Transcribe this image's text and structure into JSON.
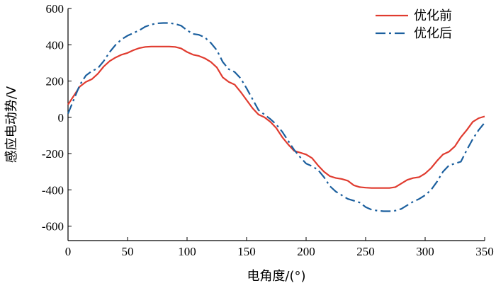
{
  "chart_data": {
    "type": "line",
    "xlabel": "电角度/(°)",
    "ylabel": "感应电动势/V",
    "xlim": [
      0,
      350
    ],
    "ylim": [
      -680,
      600
    ],
    "x_ticks": [
      0,
      50,
      100,
      150,
      200,
      250,
      300,
      350
    ],
    "y_ticks": [
      600,
      400,
      200,
      0,
      -200,
      -400,
      -600
    ],
    "grid": false,
    "legend_position": "top-right",
    "series": [
      {
        "name": "优化前",
        "color": "#e03b2f",
        "dash": "solid",
        "x": [
          0,
          5,
          10,
          15,
          20,
          25,
          30,
          35,
          40,
          45,
          50,
          55,
          60,
          65,
          70,
          75,
          80,
          85,
          90,
          95,
          100,
          105,
          110,
          115,
          120,
          125,
          130,
          135,
          140,
          145,
          150,
          155,
          160,
          165,
          170,
          175,
          180,
          185,
          190,
          195,
          200,
          205,
          210,
          215,
          220,
          225,
          230,
          235,
          240,
          245,
          250,
          255,
          260,
          265,
          270,
          275,
          280,
          285,
          290,
          295,
          300,
          305,
          310,
          315,
          320,
          325,
          330,
          335,
          340,
          345,
          350
        ],
        "values": [
          70,
          120,
          170,
          195,
          210,
          240,
          280,
          310,
          330,
          345,
          355,
          370,
          382,
          388,
          390,
          390,
          390,
          390,
          388,
          380,
          360,
          345,
          338,
          325,
          305,
          275,
          220,
          195,
          180,
          140,
          95,
          50,
          15,
          0,
          -25,
          -60,
          -110,
          -150,
          -185,
          -195,
          -205,
          -225,
          -265,
          -300,
          -325,
          -335,
          -340,
          -350,
          -375,
          -385,
          -388,
          -390,
          -390,
          -390,
          -390,
          -385,
          -365,
          -345,
          -335,
          -330,
          -310,
          -280,
          -240,
          -205,
          -190,
          -160,
          -110,
          -70,
          -25,
          -5,
          5
        ]
      },
      {
        "name": "优化后",
        "color": "#1b5f9e",
        "dash": "dashdot",
        "x": [
          0,
          5,
          10,
          15,
          20,
          25,
          30,
          35,
          40,
          45,
          50,
          55,
          60,
          65,
          70,
          75,
          80,
          85,
          90,
          95,
          100,
          105,
          110,
          115,
          120,
          125,
          130,
          135,
          140,
          145,
          150,
          155,
          160,
          165,
          170,
          175,
          180,
          185,
          190,
          195,
          200,
          205,
          210,
          215,
          220,
          225,
          230,
          235,
          240,
          245,
          250,
          255,
          260,
          265,
          270,
          275,
          280,
          285,
          290,
          295,
          300,
          305,
          310,
          315,
          320,
          325,
          330,
          335,
          340,
          345,
          350
        ],
        "values": [
          20,
          100,
          180,
          230,
          255,
          270,
          310,
          360,
          400,
          430,
          450,
          465,
          480,
          500,
          512,
          518,
          520,
          520,
          515,
          505,
          480,
          460,
          455,
          440,
          410,
          370,
          305,
          265,
          250,
          215,
          160,
          100,
          40,
          15,
          -10,
          -40,
          -80,
          -130,
          -180,
          -220,
          -255,
          -270,
          -290,
          -330,
          -380,
          -410,
          -430,
          -450,
          -460,
          -470,
          -495,
          -510,
          -515,
          -518,
          -518,
          -515,
          -505,
          -485,
          -465,
          -450,
          -430,
          -400,
          -355,
          -300,
          -265,
          -255,
          -245,
          -180,
          -120,
          -70,
          -30
        ]
      }
    ]
  }
}
